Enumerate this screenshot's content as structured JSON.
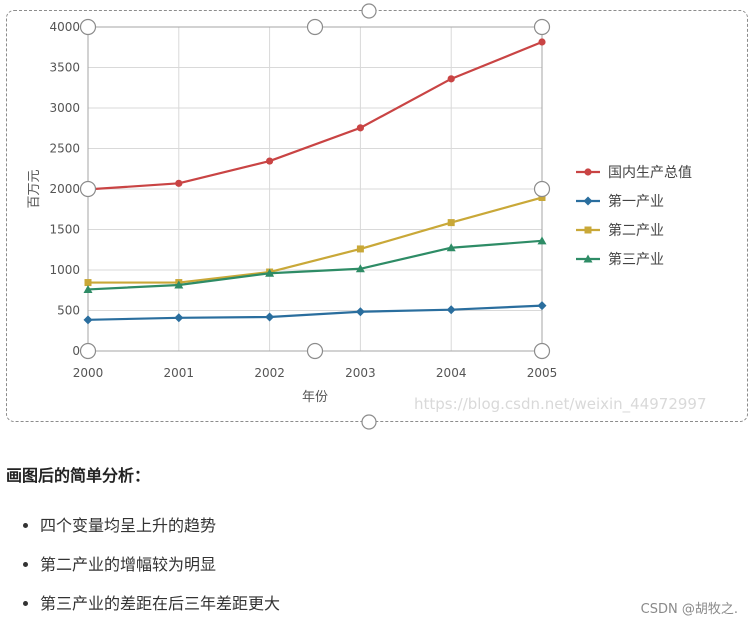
{
  "chart_data": {
    "type": "line",
    "x": [
      "2000",
      "2001",
      "2002",
      "2003",
      "2004",
      "2005"
    ],
    "xlabel": "年份",
    "ylabel": "百万元",
    "ylim": [
      0,
      4000
    ],
    "yticks": [
      0,
      500,
      1000,
      1500,
      2000,
      2500,
      3000,
      3500,
      4000
    ],
    "grid": true,
    "legend_position": "right",
    "series": [
      {
        "name": "国内生产总值",
        "color": "#c94444",
        "marker": "circle",
        "values": [
          1995,
          2070,
          2345,
          2755,
          3360,
          3815
        ]
      },
      {
        "name": "第一产业",
        "color": "#2a6e9e",
        "marker": "diamond",
        "values": [
          385,
          410,
          420,
          485,
          510,
          560
        ]
      },
      {
        "name": "第二产业",
        "color": "#c9a838",
        "marker": "square",
        "values": [
          845,
          845,
          975,
          1260,
          1585,
          1895
        ]
      },
      {
        "name": "第三产业",
        "color": "#2e8c66",
        "marker": "triangle",
        "values": [
          760,
          815,
          960,
          1015,
          1275,
          1360
        ]
      }
    ]
  },
  "watermark": "https://blog.csdn.net/weixin_44972997",
  "analysis": {
    "title": "画图后的简单分析：",
    "items": [
      "四个变量均呈上升的趋势",
      "第二产业的增幅较为明显",
      "第三产业的差距在后三年差距更大"
    ]
  },
  "footer_credit": "CSDN @胡牧之."
}
